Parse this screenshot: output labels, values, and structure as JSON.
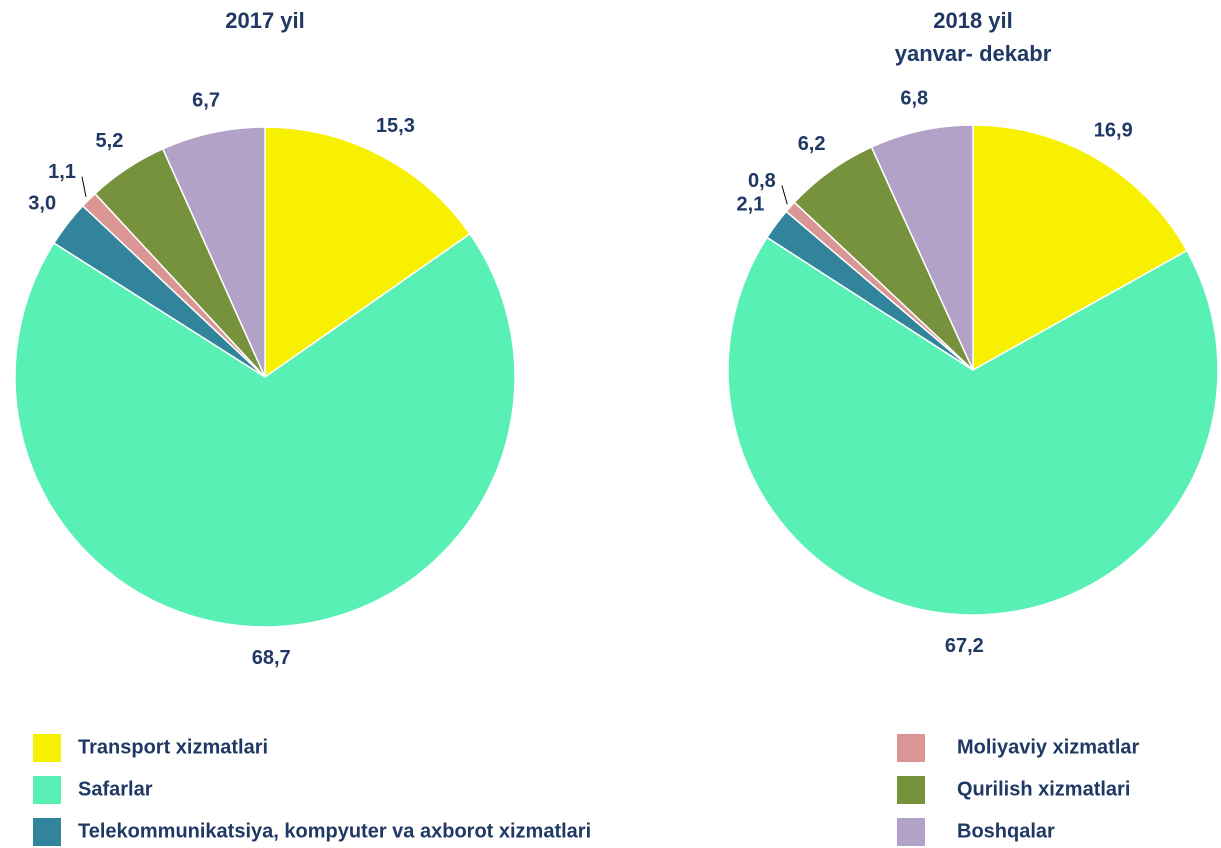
{
  "chart_data": [
    {
      "type": "pie",
      "title": "2017 yil",
      "values": [
        15.3,
        68.7,
        3.0,
        1.1,
        5.2,
        6.7
      ],
      "value_labels": [
        "15,3",
        "68,7",
        "3,0",
        "1,1",
        "5,2",
        "6,7"
      ]
    },
    {
      "type": "pie",
      "title": "2018 yil",
      "subtitle": "yanvar- dekabr",
      "values": [
        16.9,
        67.2,
        2.1,
        0.8,
        6.2,
        6.8
      ],
      "value_labels": [
        "16,9",
        "67,2",
        "2,1",
        "0,8",
        "6,2",
        "6,8"
      ]
    }
  ],
  "legend": {
    "labels": [
      "Transport xizmatlari",
      "Safarlar",
      "Telekommunikatsiya, kompyuter va axborot xizmatlari",
      "Moliyaviy xizmatlar",
      "Qurilish xizmatlari",
      "Boshqalar"
    ],
    "colors": [
      "#f7f000",
      "#58f0b4",
      "#31849b",
      "#d99694",
      "#76923c",
      "#b2a2c7"
    ]
  }
}
